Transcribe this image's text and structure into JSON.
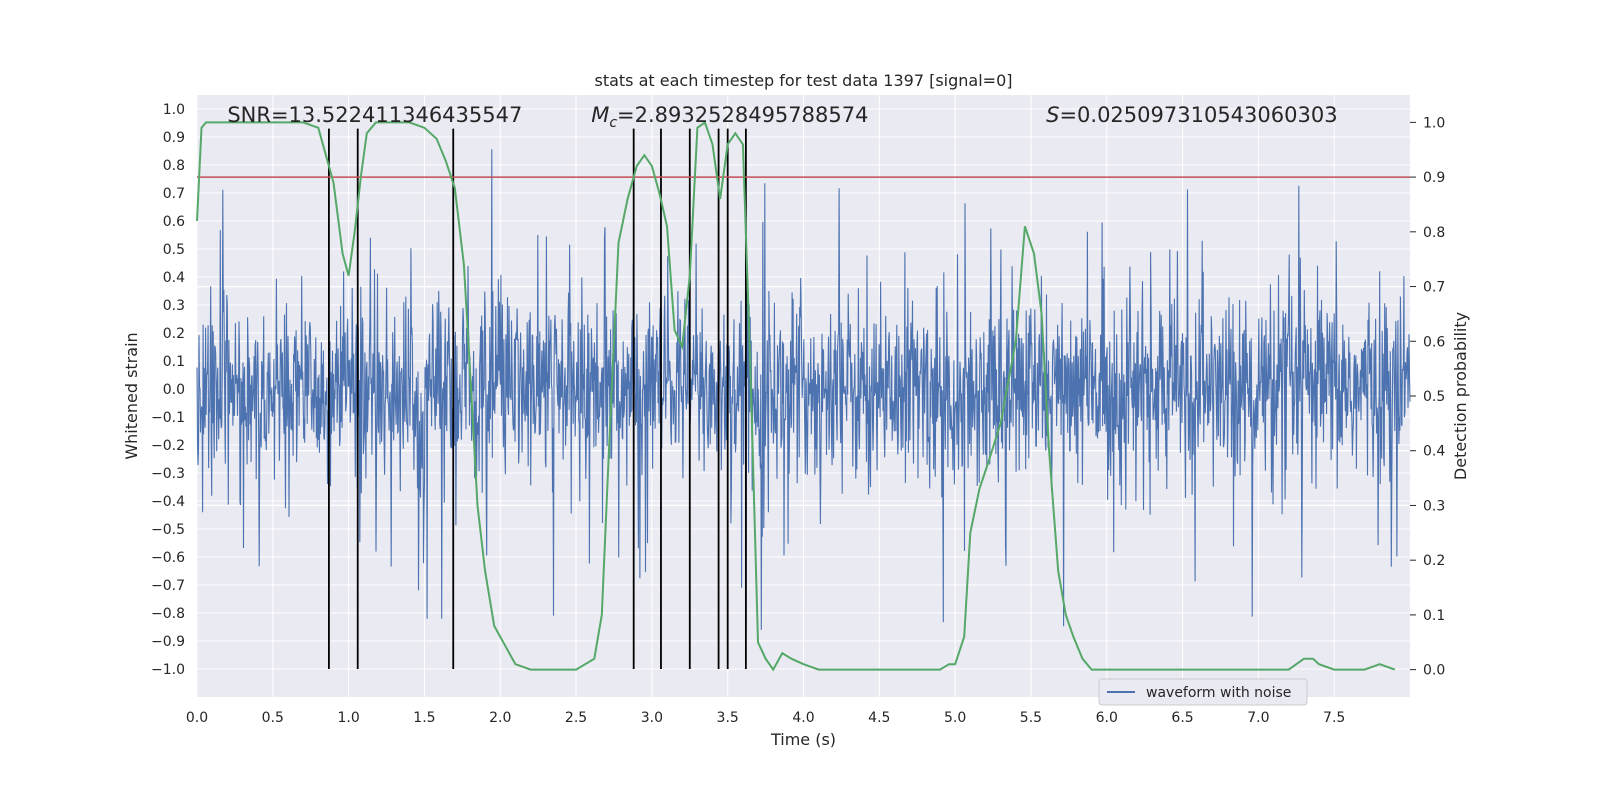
{
  "chart_data": {
    "type": "line",
    "title": "stats at each timestep for test data 1397 [signal=0]",
    "xlabel": "Time (s)",
    "ylabel": "Whitened strain",
    "ylabel_right": "Detection probability",
    "xlim": [
      0.0,
      8.0
    ],
    "ylim": [
      -1.1,
      1.05
    ],
    "ylim_right": [
      -0.05,
      1.05
    ],
    "x_ticks": [
      "0.0",
      "0.5",
      "1.0",
      "1.5",
      "2.0",
      "2.5",
      "3.0",
      "3.5",
      "4.0",
      "4.5",
      "5.0",
      "5.5",
      "6.0",
      "6.5",
      "7.0",
      "7.5"
    ],
    "y_ticks": [
      "1.0",
      "0.9",
      "0.8",
      "0.7",
      "0.6",
      "0.5",
      "0.4",
      "0.3",
      "0.2",
      "0.1",
      "0.0",
      "−0.1",
      "−0.2",
      "−0.3",
      "−0.4",
      "−0.5",
      "−0.6",
      "−0.7",
      "−0.8",
      "−0.9",
      "−1.0"
    ],
    "y_right_ticks": [
      "1.0",
      "0.9",
      "0.8",
      "0.7",
      "0.6",
      "0.5",
      "0.4",
      "0.3",
      "0.2",
      "0.1",
      "0.0"
    ],
    "grid": true,
    "legend": {
      "placement": "lower-right",
      "entries": [
        "waveform with noise"
      ]
    },
    "annotations": {
      "snr": "SNR=13.522411346435547",
      "mc_symbol": "M",
      "mc_sub": "c",
      "mc_value": "=2.8932528495788574",
      "s_symbol": "S",
      "s_value": "=0.025097310543060303"
    },
    "threshold": {
      "y_right": 0.9,
      "color": "#c44e52"
    },
    "vertical_markers": {
      "times": [
        0.87,
        1.06,
        1.69,
        2.88,
        3.06,
        3.25,
        3.44,
        3.5,
        3.62
      ],
      "y_range": [
        -1.0,
        0.93
      ]
    },
    "waveform": {
      "name": "waveform with noise",
      "color": "#4c72b0",
      "typical_amplitude": 0.4,
      "peak_amplitude": 0.87
    },
    "detection_probability": {
      "color": "#55a868",
      "x": [
        0.0,
        0.03,
        0.06,
        0.12,
        0.2,
        0.3,
        0.4,
        0.5,
        0.6,
        0.7,
        0.8,
        0.9,
        0.96,
        1.0,
        1.04,
        1.08,
        1.12,
        1.18,
        1.3,
        1.4,
        1.5,
        1.58,
        1.64,
        1.7,
        1.76,
        1.8,
        1.85,
        1.9,
        1.96,
        2.04,
        2.1,
        2.2,
        2.3,
        2.4,
        2.5,
        2.56,
        2.62,
        2.67,
        2.72,
        2.78,
        2.84,
        2.9,
        2.95,
        3.0,
        3.05,
        3.1,
        3.15,
        3.2,
        3.25,
        3.3,
        3.35,
        3.4,
        3.45,
        3.5,
        3.55,
        3.6,
        3.65,
        3.7,
        3.75,
        3.8,
        3.86,
        3.92,
        4.0,
        4.1,
        4.2,
        4.4,
        4.6,
        4.8,
        4.9,
        4.96,
        5.0,
        5.06,
        5.1,
        5.16,
        5.22,
        5.3,
        5.4,
        5.46,
        5.52,
        5.57,
        5.62,
        5.68,
        5.73,
        5.78,
        5.84,
        5.9,
        6.0,
        6.2,
        6.5,
        6.8,
        7.0,
        7.2,
        7.25,
        7.3,
        7.36,
        7.4,
        7.5,
        7.7,
        7.8,
        7.9
      ],
      "y": [
        0.82,
        0.99,
        1.0,
        1.0,
        1.0,
        1.0,
        1.0,
        1.0,
        1.0,
        1.0,
        0.99,
        0.89,
        0.76,
        0.72,
        0.8,
        0.9,
        0.98,
        1.0,
        1.0,
        1.0,
        0.99,
        0.97,
        0.93,
        0.88,
        0.74,
        0.55,
        0.3,
        0.18,
        0.08,
        0.04,
        0.01,
        0.0,
        0.0,
        0.0,
        0.0,
        0.01,
        0.02,
        0.1,
        0.42,
        0.78,
        0.86,
        0.92,
        0.94,
        0.92,
        0.87,
        0.81,
        0.62,
        0.59,
        0.72,
        0.99,
        1.0,
        0.96,
        0.86,
        0.96,
        0.98,
        0.96,
        0.55,
        0.05,
        0.02,
        0.0,
        0.03,
        0.02,
        0.01,
        0.0,
        0.0,
        0.0,
        0.0,
        0.0,
        0.0,
        0.01,
        0.01,
        0.06,
        0.25,
        0.33,
        0.38,
        0.45,
        0.6,
        0.81,
        0.76,
        0.65,
        0.4,
        0.18,
        0.1,
        0.06,
        0.02,
        0.0,
        0.0,
        0.0,
        0.0,
        0.0,
        0.0,
        0.0,
        0.01,
        0.02,
        0.02,
        0.01,
        0.0,
        0.0,
        0.01,
        0.0
      ]
    }
  }
}
